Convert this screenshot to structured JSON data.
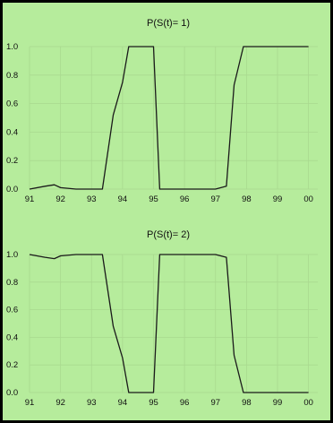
{
  "chart_data": [
    {
      "type": "line",
      "title": "P(S(t)= 1)",
      "xlabel": "",
      "ylabel": "",
      "x_tick_labels": [
        "91",
        "92",
        "93",
        "94",
        "95",
        "96",
        "97",
        "98",
        "99",
        "00"
      ],
      "y_tick_labels": [
        "0.0",
        "0.2",
        "0.4",
        "0.6",
        "0.8",
        "1.0"
      ],
      "ylim": [
        0,
        1
      ],
      "grid": true,
      "legend": "none",
      "series": [
        {
          "x": [
            "91",
            "91.5",
            "91.8",
            "92",
            "92.5",
            "93",
            "93.35",
            "93.7",
            "94",
            "94.2",
            "94.5",
            "95",
            "95.2",
            "95.5",
            "96",
            "97",
            "97.35",
            "97.6",
            "97.9",
            "98.5",
            "99",
            "00"
          ],
          "values": [
            0.0,
            0.02,
            0.03,
            0.01,
            0.0,
            0.0,
            0.0,
            0.52,
            0.75,
            1.0,
            1.0,
            1.0,
            0.0,
            0.0,
            0.0,
            0.0,
            0.02,
            0.73,
            1.0,
            1.0,
            1.0,
            1.0
          ]
        }
      ]
    },
    {
      "type": "line",
      "title": "P(S(t)= 2)",
      "xlabel": "",
      "ylabel": "",
      "x_tick_labels": [
        "91",
        "92",
        "93",
        "94",
        "95",
        "96",
        "97",
        "98",
        "99",
        "00"
      ],
      "y_tick_labels": [
        "0.0",
        "0.2",
        "0.4",
        "0.6",
        "0.8",
        "1.0"
      ],
      "ylim": [
        0,
        1
      ],
      "grid": true,
      "legend": "none",
      "series": [
        {
          "x": [
            "91",
            "91.5",
            "91.8",
            "92",
            "92.5",
            "93",
            "93.35",
            "93.7",
            "94",
            "94.2",
            "94.5",
            "95",
            "95.2",
            "95.5",
            "96",
            "97",
            "97.35",
            "97.6",
            "97.9",
            "98.5",
            "99",
            "00"
          ],
          "values": [
            1.0,
            0.98,
            0.97,
            0.99,
            1.0,
            1.0,
            1.0,
            0.48,
            0.25,
            0.0,
            0.0,
            0.0,
            1.0,
            1.0,
            1.0,
            1.0,
            0.98,
            0.27,
            0.0,
            0.0,
            0.0,
            0.0
          ]
        }
      ]
    }
  ]
}
